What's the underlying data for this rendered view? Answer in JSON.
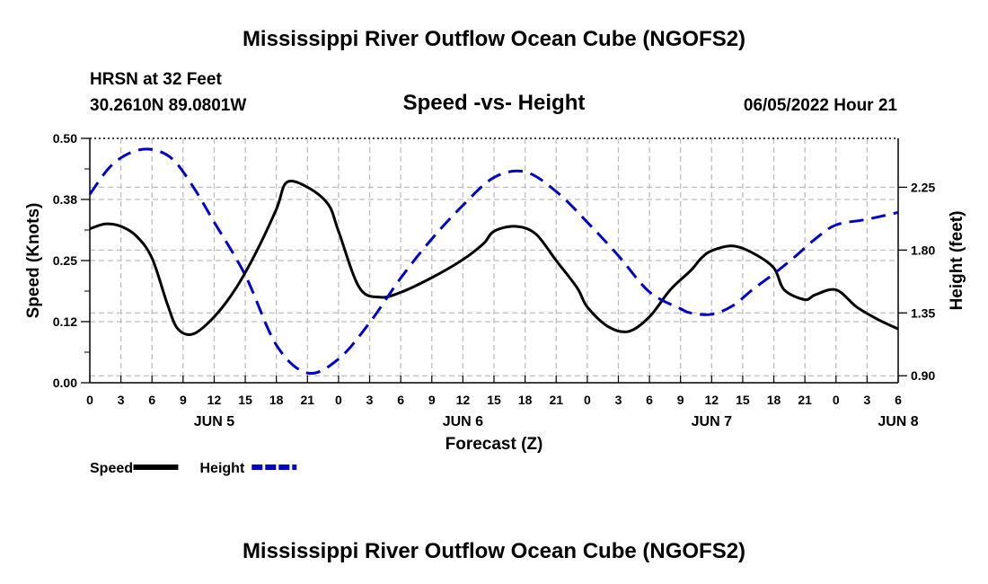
{
  "header": {
    "title": "Mississippi River Outflow Ocean Cube (NGOFS2)",
    "station": "HRSN at 32 Feet",
    "coordinates": "30.2610N  89.0801W",
    "subtitle": "Speed -vs- Height",
    "datetime": "06/05/2022 Hour 21"
  },
  "footer": {
    "title": "Mississippi River Outflow Ocean Cube (NGOFS2)"
  },
  "chart_data": {
    "type": "line",
    "title": "Speed -vs- Height",
    "xlabel": "Forecast (Z)",
    "x_ticks": [
      "0",
      "3",
      "6",
      "9",
      "12",
      "15",
      "18",
      "21",
      "0",
      "3",
      "6",
      "9",
      "12",
      "15",
      "18",
      "21",
      "0",
      "3",
      "6",
      "9",
      "12",
      "15",
      "18",
      "21",
      "0",
      "3",
      "6"
    ],
    "date_labels": [
      {
        "label": "JUN 5",
        "hour": 12
      },
      {
        "label": "JUN 6",
        "hour": 36
      },
      {
        "label": "JUN 7",
        "hour": 60
      },
      {
        "label": "JUN 8",
        "hour": 78
      }
    ],
    "xlim": [
      0,
      78
    ],
    "left_axis": {
      "label": "Speed (Knots)",
      "ylim": [
        0,
        0.5
      ],
      "ticks": [
        0,
        0.125,
        0.25,
        0.375,
        0.5
      ],
      "tick_labels": [
        "0.00",
        "0.12",
        "0.25",
        "0.38",
        "0.50"
      ]
    },
    "right_axis": {
      "label": "Height (feet)",
      "ylim": [
        0.85,
        2.6
      ],
      "ticks": [
        0.9,
        1.35,
        1.8,
        2.25
      ],
      "tick_labels": [
        "0.90",
        "1.35",
        "1.80",
        "2.25"
      ]
    },
    "series": [
      {
        "name": "Speed",
        "axis": "left",
        "color": "#000000",
        "style": "solid",
        "x": [
          0,
          1.5,
          3,
          4.5,
          6,
          7.5,
          8.5,
          10,
          12,
          14,
          16,
          18,
          19,
          21,
          23,
          24,
          26,
          28,
          30,
          33,
          36,
          38,
          39,
          41,
          43,
          45,
          47,
          48,
          50,
          52,
          54,
          56,
          58,
          59,
          60,
          62,
          64,
          66,
          67,
          69,
          70,
          72,
          74,
          76,
          78
        ],
        "y": [
          0.315,
          0.325,
          0.32,
          0.3,
          0.255,
          0.16,
          0.11,
          0.1,
          0.135,
          0.19,
          0.265,
          0.355,
          0.41,
          0.4,
          0.365,
          0.31,
          0.195,
          0.175,
          0.185,
          0.215,
          0.252,
          0.285,
          0.31,
          0.32,
          0.305,
          0.25,
          0.195,
          0.155,
          0.115,
          0.105,
          0.135,
          0.19,
          0.23,
          0.255,
          0.27,
          0.28,
          0.265,
          0.235,
          0.19,
          0.17,
          0.18,
          0.19,
          0.155,
          0.13,
          0.11
        ]
      },
      {
        "name": "Height",
        "axis": "right",
        "color": "#0000cc",
        "style": "dashed",
        "x": [
          0,
          2,
          4,
          6,
          8,
          10,
          12,
          15,
          18,
          21,
          24,
          27,
          30,
          33,
          36,
          39,
          42,
          45,
          48,
          51,
          54,
          57,
          58,
          60,
          62,
          64,
          66,
          68,
          70,
          72,
          75,
          78
        ],
        "y": [
          2.2,
          2.4,
          2.5,
          2.52,
          2.45,
          2.25,
          2.0,
          1.62,
          1.12,
          0.92,
          1.02,
          1.28,
          1.6,
          1.88,
          2.12,
          2.32,
          2.36,
          2.22,
          2.0,
          1.76,
          1.5,
          1.38,
          1.35,
          1.34,
          1.4,
          1.52,
          1.63,
          1.75,
          1.88,
          1.98,
          2.02,
          2.07
        ]
      }
    ],
    "legend": [
      {
        "label": "Speed",
        "color": "#000000",
        "style": "solid"
      },
      {
        "label": "Height",
        "color": "#0000cc",
        "style": "dashed"
      }
    ],
    "legend_position": "bottom-left",
    "grid": true
  }
}
